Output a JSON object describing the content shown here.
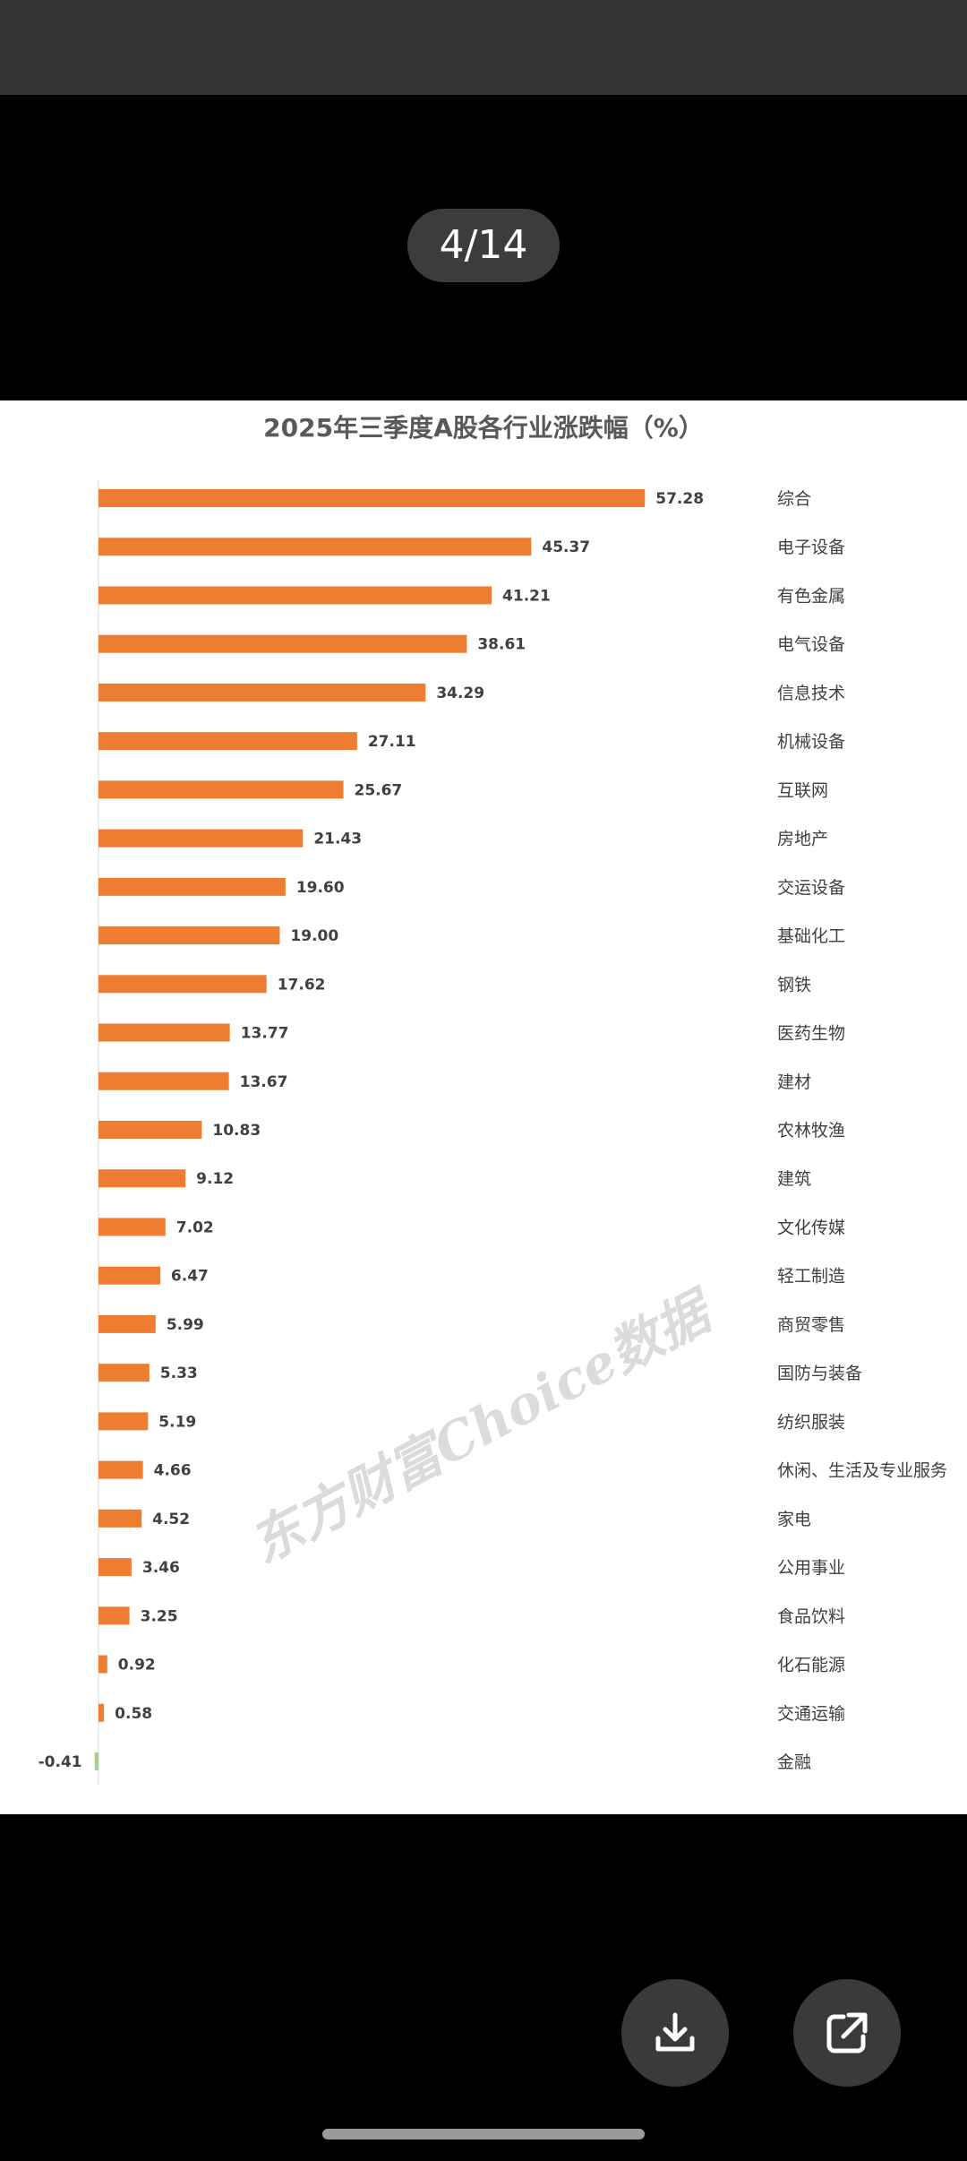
{
  "viewer": {
    "page_indicator": "4/14",
    "download_icon": "download-icon",
    "share_icon": "open-external-icon"
  },
  "colors": {
    "positive_bar": "#ed7d31",
    "negative_bar": "#a9d18e",
    "text": "#404040",
    "background": "#000000",
    "button": "#3a3a3a"
  },
  "chart_data": {
    "type": "bar",
    "orientation": "horizontal",
    "title": "2025年三季度A股各行业涨跌幅（%）",
    "watermark": "东方财富Choice数据",
    "categories": [
      "综合",
      "电子设备",
      "有色金属",
      "电气设备",
      "信息技术",
      "机械设备",
      "互联网",
      "房地产",
      "交运设备",
      "基础化工",
      "钢铁",
      "医药生物",
      "建材",
      "农林牧渔",
      "建筑",
      "文化传媒",
      "轻工制造",
      "商贸零售",
      "国防与装备",
      "纺织服装",
      "休闲、生活及专业服务",
      "家电",
      "公用事业",
      "食品饮料",
      "化石能源",
      "交通运输",
      "金融"
    ],
    "values": [
      57.28,
      45.37,
      41.21,
      38.61,
      34.29,
      27.11,
      25.67,
      21.43,
      19.6,
      19.0,
      17.62,
      13.77,
      13.67,
      10.83,
      9.12,
      7.02,
      6.47,
      5.99,
      5.33,
      5.19,
      4.66,
      4.52,
      3.46,
      3.25,
      0.92,
      0.58,
      -0.41
    ],
    "value_labels": [
      "57.28",
      "45.37",
      "41.21",
      "38.61",
      "34.29",
      "27.11",
      "25.67",
      "21.43",
      "19.60",
      "19.00",
      "17.62",
      "13.77",
      "13.67",
      "10.83",
      "9.12",
      "7.02",
      "6.47",
      "5.99",
      "5.33",
      "5.19",
      "4.66",
      "4.52",
      "3.46",
      "3.25",
      "0.92",
      "0.58",
      "-0.41"
    ],
    "grid": false,
    "legend": "none"
  }
}
